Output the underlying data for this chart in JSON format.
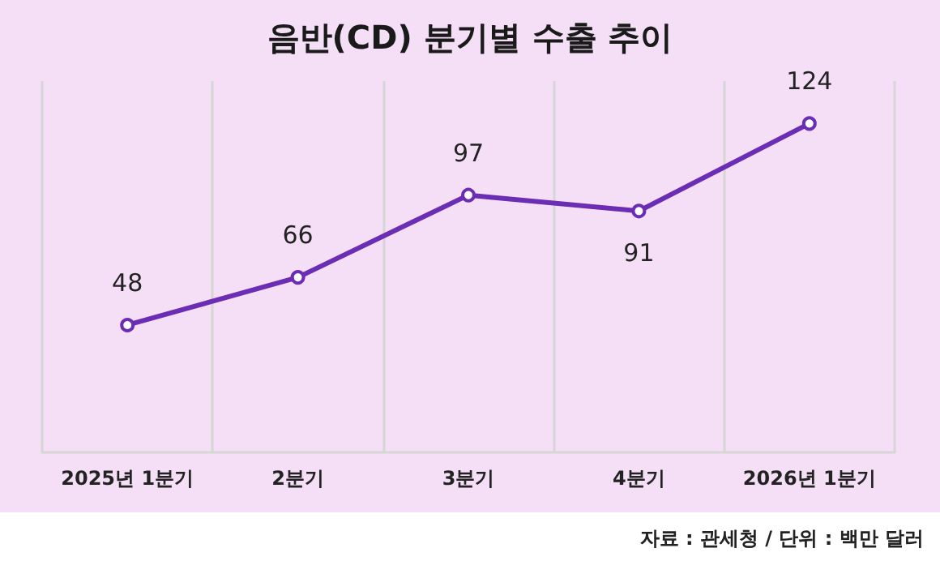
{
  "chart_data": {
    "type": "line",
    "title": "음반(CD) 분기별 수출 추이",
    "categories": [
      "2025년 1분기",
      "2분기",
      "3분기",
      "4분기",
      "2026년 1분기"
    ],
    "values": [
      48,
      66,
      97,
      91,
      124
    ],
    "color": "#6a2db3",
    "ylim": [
      0,
      140
    ],
    "data_labels": true,
    "marker": "circle",
    "line_style": "solid",
    "grid": "x",
    "annotations": [
      "자료 : 관세청 / 단위 : 백만 달러"
    ]
  }
}
